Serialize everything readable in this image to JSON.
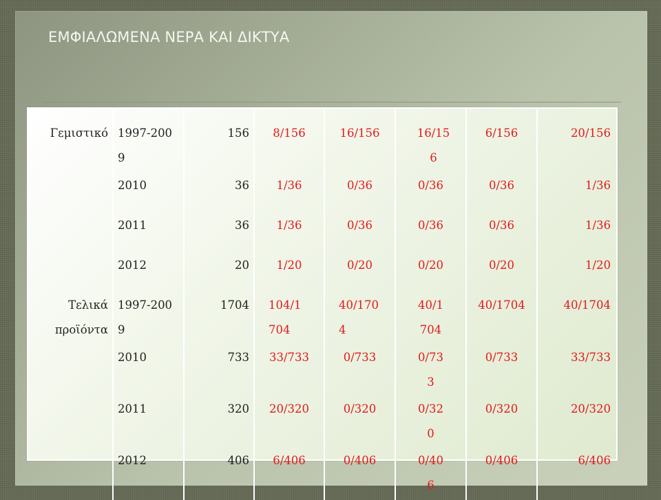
{
  "slide": {
    "title": "ΕΜΦΙΑΛΩΜΕΝΑ ΝΕΡΑ ΚΑΙ ΔΙΚΤΥΑ"
  },
  "table": {
    "rows": [
      {
        "category": "Γεμιστικό",
        "year": "1997-2009",
        "total": "156",
        "v1": "8/156",
        "v2": "16/156",
        "v3": "16/156",
        "v4": "6/156",
        "v5": "20/156"
      },
      {
        "category": "",
        "year": "2010",
        "total": "36",
        "v1": "1/36",
        "v2": "0/36",
        "v3": "0/36",
        "v4": "0/36",
        "v5": "1/36"
      },
      {
        "category": "",
        "year": "2011",
        "total": "36",
        "v1": "1/36",
        "v2": "0/36",
        "v3": "0/36",
        "v4": "0/36",
        "v5": "1/36"
      },
      {
        "category": "",
        "year": "2012",
        "total": "20",
        "v1": "1/20",
        "v2": "0/20",
        "v3": "0/20",
        "v4": "0/20",
        "v5": "1/20"
      },
      {
        "category": "Τελικά προϊόντα",
        "year": "1997-2009",
        "total": "1704",
        "v1": "104/1704",
        "v2": "40/1704",
        "v3": "40/1704",
        "v4": "40/1704",
        "v5": "40/1704"
      },
      {
        "category": "",
        "year": "2010",
        "total": "733",
        "v1": "33/733",
        "v2": "0/733",
        "v3": "0/733",
        "v4": "0/733",
        "v5": "33/733"
      },
      {
        "category": "",
        "year": "2011",
        "total": "320",
        "v1": "20/320",
        "v2": "0/320",
        "v3": "0/320",
        "v4": "0/320",
        "v5": "20/320"
      },
      {
        "category": "",
        "year": "2012",
        "total": "406",
        "v1": "6/406",
        "v2": "0/406",
        "v3": "0/406",
        "v4": "0/406",
        "v5": "6/406"
      }
    ]
  },
  "colors": {
    "value_text": "#e11a1a",
    "body_text": "#1f1f1f",
    "slide_background": "#646a55"
  }
}
